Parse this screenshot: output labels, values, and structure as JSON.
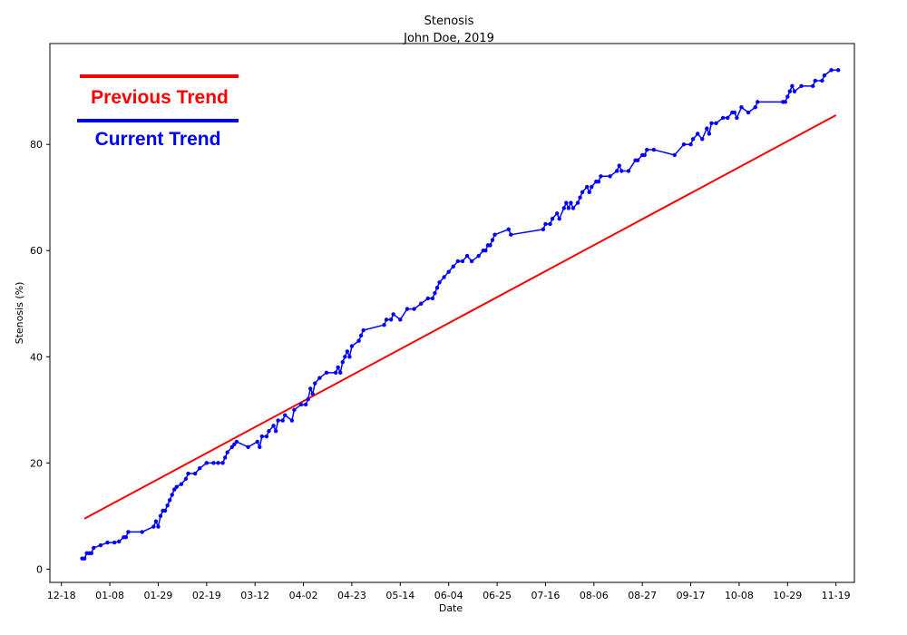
{
  "chart_data": {
    "type": "line",
    "title": "Stenosis",
    "subtitle": "John Doe, 2019",
    "xlabel": "Date",
    "ylabel": "Stenosis (%)",
    "x_ticks": [
      "12-18",
      "01-08",
      "01-29",
      "02-19",
      "03-12",
      "04-02",
      "04-23",
      "05-14",
      "06-04",
      "06-25",
      "07-16",
      "08-06",
      "08-27",
      "09-17",
      "10-08",
      "10-29",
      "11-19"
    ],
    "y_ticks": [
      0,
      20,
      40,
      60,
      80
    ],
    "xlim": [
      "2018-12-13",
      "2019-11-27"
    ],
    "ylim": [
      -2.5,
      99
    ],
    "grid": false,
    "legend_placement": "top-left",
    "series": [
      {
        "name": "Previous Trend",
        "color": "#ff0000",
        "points": [
          [
            "2018-12-28",
            9.5
          ],
          [
            "2019-11-19",
            85.5
          ]
        ]
      },
      {
        "name": "Current Trend",
        "color": "#0000ff",
        "points": [
          [
            "2018-12-27",
            2
          ],
          [
            "2018-12-28",
            2
          ],
          [
            "2018-12-29",
            3
          ],
          [
            "2018-12-30",
            3
          ],
          [
            "2018-12-31",
            3
          ],
          [
            "2019-01-01",
            4
          ],
          [
            "2019-01-04",
            4.5
          ],
          [
            "2019-01-07",
            5
          ],
          [
            "2019-01-10",
            5
          ],
          [
            "2019-01-12",
            5.2
          ],
          [
            "2019-01-14",
            6
          ],
          [
            "2019-01-15",
            6
          ],
          [
            "2019-01-16",
            7
          ],
          [
            "2019-01-22",
            7
          ],
          [
            "2019-01-27",
            8
          ],
          [
            "2019-01-28",
            9
          ],
          [
            "2019-01-29",
            8
          ],
          [
            "2019-01-30",
            10
          ],
          [
            "2019-01-31",
            11
          ],
          [
            "2019-02-01",
            11
          ],
          [
            "2019-02-02",
            12
          ],
          [
            "2019-02-03",
            13
          ],
          [
            "2019-02-04",
            14
          ],
          [
            "2019-02-05",
            15
          ],
          [
            "2019-02-06",
            15.5
          ],
          [
            "2019-02-08",
            16
          ],
          [
            "2019-02-10",
            17
          ],
          [
            "2019-02-11",
            18
          ],
          [
            "2019-02-14",
            18
          ],
          [
            "2019-02-16",
            19
          ],
          [
            "2019-02-19",
            20
          ],
          [
            "2019-02-22",
            20
          ],
          [
            "2019-02-24",
            20
          ],
          [
            "2019-02-26",
            20
          ],
          [
            "2019-02-27",
            21
          ],
          [
            "2019-02-28",
            22
          ],
          [
            "2019-03-02",
            23
          ],
          [
            "2019-03-03",
            23.5
          ],
          [
            "2019-03-04",
            24
          ],
          [
            "2019-03-09",
            23
          ],
          [
            "2019-03-13",
            24
          ],
          [
            "2019-03-14",
            23
          ],
          [
            "2019-03-15",
            25
          ],
          [
            "2019-03-17",
            25
          ],
          [
            "2019-03-18",
            26
          ],
          [
            "2019-03-20",
            27
          ],
          [
            "2019-03-21",
            26
          ],
          [
            "2019-03-22",
            28
          ],
          [
            "2019-03-24",
            28
          ],
          [
            "2019-03-25",
            29
          ],
          [
            "2019-03-28",
            28
          ],
          [
            "2019-03-29",
            30
          ],
          [
            "2019-04-01",
            31
          ],
          [
            "2019-04-03",
            31
          ],
          [
            "2019-04-04",
            32
          ],
          [
            "2019-04-05",
            34
          ],
          [
            "2019-04-06",
            33
          ],
          [
            "2019-04-07",
            35
          ],
          [
            "2019-04-09",
            36
          ],
          [
            "2019-04-12",
            37
          ],
          [
            "2019-04-16",
            37
          ],
          [
            "2019-04-17",
            38
          ],
          [
            "2019-04-18",
            37
          ],
          [
            "2019-04-19",
            39
          ],
          [
            "2019-04-20",
            40
          ],
          [
            "2019-04-21",
            41
          ],
          [
            "2019-04-22",
            40
          ],
          [
            "2019-04-23",
            42
          ],
          [
            "2019-04-26",
            43
          ],
          [
            "2019-04-27",
            44
          ],
          [
            "2019-04-28",
            45
          ],
          [
            "2019-05-07",
            46
          ],
          [
            "2019-05-08",
            47
          ],
          [
            "2019-05-10",
            47
          ],
          [
            "2019-05-11",
            48
          ],
          [
            "2019-05-14",
            47
          ],
          [
            "2019-05-17",
            49
          ],
          [
            "2019-05-20",
            49
          ],
          [
            "2019-05-23",
            50
          ],
          [
            "2019-05-26",
            51
          ],
          [
            "2019-05-28",
            51
          ],
          [
            "2019-05-29",
            52
          ],
          [
            "2019-05-30",
            53
          ],
          [
            "2019-05-31",
            54
          ],
          [
            "2019-06-02",
            55
          ],
          [
            "2019-06-04",
            56
          ],
          [
            "2019-06-06",
            57
          ],
          [
            "2019-06-08",
            58
          ],
          [
            "2019-06-10",
            58
          ],
          [
            "2019-06-12",
            59
          ],
          [
            "2019-06-14",
            58
          ],
          [
            "2019-06-17",
            59
          ],
          [
            "2019-06-19",
            60
          ],
          [
            "2019-06-20",
            60
          ],
          [
            "2019-06-21",
            61
          ],
          [
            "2019-06-22",
            61
          ],
          [
            "2019-06-23",
            62
          ],
          [
            "2019-06-24",
            63
          ],
          [
            "2019-06-30",
            64
          ],
          [
            "2019-07-01",
            63
          ],
          [
            "2019-07-15",
            64
          ],
          [
            "2019-07-16",
            65
          ],
          [
            "2019-07-18",
            65
          ],
          [
            "2019-07-19",
            66
          ],
          [
            "2019-07-21",
            67
          ],
          [
            "2019-07-22",
            66
          ],
          [
            "2019-07-24",
            68
          ],
          [
            "2019-07-25",
            69
          ],
          [
            "2019-07-26",
            68
          ],
          [
            "2019-07-27",
            69
          ],
          [
            "2019-07-28",
            68
          ],
          [
            "2019-07-30",
            69
          ],
          [
            "2019-07-31",
            70
          ],
          [
            "2019-08-01",
            71
          ],
          [
            "2019-08-03",
            72
          ],
          [
            "2019-08-04",
            71
          ],
          [
            "2019-08-05",
            72
          ],
          [
            "2019-08-07",
            73
          ],
          [
            "2019-08-08",
            73
          ],
          [
            "2019-08-09",
            74
          ],
          [
            "2019-08-13",
            74
          ],
          [
            "2019-08-16",
            75
          ],
          [
            "2019-08-17",
            76
          ],
          [
            "2019-08-18",
            75
          ],
          [
            "2019-08-21",
            75
          ],
          [
            "2019-08-24",
            77
          ],
          [
            "2019-08-25",
            77
          ],
          [
            "2019-08-27",
            78
          ],
          [
            "2019-08-28",
            78
          ],
          [
            "2019-08-29",
            79
          ],
          [
            "2019-09-01",
            79
          ],
          [
            "2019-09-10",
            78
          ],
          [
            "2019-09-14",
            80
          ],
          [
            "2019-09-17",
            80
          ],
          [
            "2019-09-18",
            81
          ],
          [
            "2019-09-20",
            82
          ],
          [
            "2019-09-22",
            81
          ],
          [
            "2019-09-24",
            83
          ],
          [
            "2019-09-25",
            82
          ],
          [
            "2019-09-26",
            84
          ],
          [
            "2019-09-28",
            84
          ],
          [
            "2019-10-01",
            85
          ],
          [
            "2019-10-03",
            85
          ],
          [
            "2019-10-05",
            86
          ],
          [
            "2019-10-06",
            86
          ],
          [
            "2019-10-07",
            85
          ],
          [
            "2019-10-09",
            87
          ],
          [
            "2019-10-12",
            86
          ],
          [
            "2019-10-15",
            87
          ],
          [
            "2019-10-16",
            88
          ],
          [
            "2019-10-27",
            88
          ],
          [
            "2019-10-28",
            88
          ],
          [
            "2019-10-29",
            89
          ],
          [
            "2019-10-30",
            90
          ],
          [
            "2019-10-31",
            91
          ],
          [
            "2019-11-01",
            90
          ],
          [
            "2019-11-04",
            91
          ],
          [
            "2019-11-09",
            91
          ],
          [
            "2019-11-10",
            92
          ],
          [
            "2019-11-13",
            92
          ],
          [
            "2019-11-14",
            93
          ],
          [
            "2019-11-17",
            94
          ],
          [
            "2019-11-20",
            94
          ]
        ]
      }
    ]
  }
}
